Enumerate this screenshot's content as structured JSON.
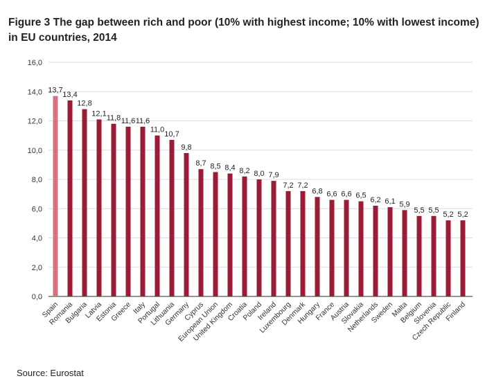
{
  "chart_data": {
    "type": "bar",
    "title": "Figure 3 The gap between rich and poor (10% with highest income; 10% with lowest income) in EU countries, 2014",
    "xlabel": "",
    "ylabel": "",
    "ylim": [
      0,
      16
    ],
    "yticks": [
      "0,0",
      "2,0",
      "4,0",
      "6,0",
      "8,0",
      "10,0",
      "12,0",
      "14,0",
      "16,0"
    ],
    "grid": true,
    "categories": [
      "Spain",
      "Romania",
      "Bulgaria",
      "Latvia",
      "Estonia",
      "Greece",
      "Italy",
      "Portugal",
      "Lithuania",
      "Germany",
      "Cyprus",
      "European Union",
      "United Kingdom",
      "Croatia",
      "Poland",
      "Ireland",
      "Luxembourg",
      "Denmark",
      "Hungary",
      "France",
      "Austria",
      "Slovakia",
      "Netherlands",
      "Sweden",
      "Malta",
      "Belgium",
      "Slovenia",
      "Czech Republic",
      "Finland"
    ],
    "values": [
      13.7,
      13.4,
      12.8,
      12.1,
      11.8,
      11.6,
      11.6,
      11.0,
      10.7,
      9.8,
      8.7,
      8.5,
      8.4,
      8.2,
      8.0,
      7.9,
      7.2,
      7.2,
      6.8,
      6.6,
      6.6,
      6.5,
      6.2,
      6.1,
      5.9,
      5.5,
      5.5,
      5.2,
      5.2
    ],
    "data_labels": [
      "13,7",
      "13,4",
      "12,8",
      "12,1",
      "11,8",
      "11,6",
      "11,6",
      "11,0",
      "10,7",
      "9,8",
      "8,7",
      "8,5",
      "8,4",
      "8,2",
      "8,0",
      "7,9",
      "7,2",
      "7,2",
      "6,8",
      "6,6",
      "6,6",
      "6,5",
      "6,2",
      "6,1",
      "5,9",
      "5,5",
      "5,5",
      "5,2",
      "5,2"
    ],
    "colors": {
      "highlight": "#d9707f",
      "bar": "#9b1c36"
    },
    "source": "Source: Eurostat"
  }
}
